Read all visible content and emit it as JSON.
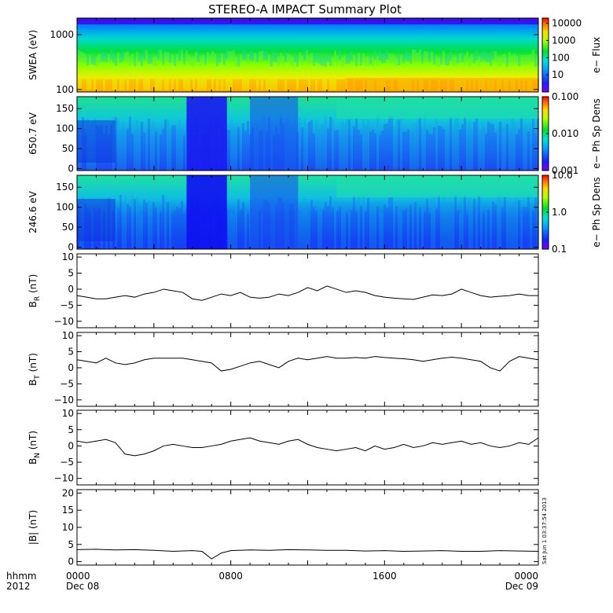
{
  "title": "STEREO-A IMPACT Summary Plot",
  "stamp": "Sat Jun 1 03:37:54 2013",
  "x_axis": {
    "corner_labels": [
      "hhmm",
      "2012"
    ],
    "ticks": [
      {
        "value": 0,
        "top": "0000",
        "bottom": "Dec 08"
      },
      {
        "value": 8,
        "top": "0800",
        "bottom": ""
      },
      {
        "value": 16,
        "top": "1600",
        "bottom": ""
      },
      {
        "value": 24,
        "top": "0000",
        "bottom": "Dec 09"
      }
    ],
    "range_hours": [
      0,
      24
    ]
  },
  "colors": {
    "line": "#000000",
    "frame": "#000000",
    "background": "#ffffff"
  },
  "chart_data": [
    {
      "type": "heatmap",
      "name": "swea",
      "ylabel": "SWEA (eV)",
      "yscale": "log",
      "ylim": [
        90,
        2000
      ],
      "yticks": [
        {
          "v": 100,
          "t": "100"
        },
        {
          "v": 1000,
          "t": "1000"
        }
      ],
      "colorbar": {
        "label": "e− Flux",
        "scale": "log",
        "range": [
          1,
          20000
        ],
        "ticks": [
          {
            "v": 10,
            "t": "10"
          },
          {
            "v": 100,
            "t": "100"
          },
          {
            "v": 1000,
            "t": "1000"
          },
          {
            "v": 10000,
            "t": "10000"
          }
        ]
      }
    },
    {
      "type": "heatmap",
      "name": "pad650",
      "ylabel": "650.7 eV",
      "yscale": "linear",
      "ylim": [
        -5,
        180
      ],
      "yticks": [
        {
          "v": 0,
          "t": "0"
        },
        {
          "v": 50,
          "t": "50"
        },
        {
          "v": 100,
          "t": "100"
        },
        {
          "v": 150,
          "t": "150"
        }
      ],
      "colorbar": {
        "label": "e− Ph Sp Dens",
        "scale": "log",
        "range": [
          0.001,
          0.1
        ],
        "ticks": [
          {
            "v": 0.001,
            "t": "0.001"
          },
          {
            "v": 0.01,
            "t": "0.010"
          },
          {
            "v": 0.1,
            "t": "0.100"
          }
        ]
      }
    },
    {
      "type": "heatmap",
      "name": "pad246",
      "ylabel": "246.6 eV",
      "yscale": "linear",
      "ylim": [
        -5,
        180
      ],
      "yticks": [
        {
          "v": 0,
          "t": "0"
        },
        {
          "v": 50,
          "t": "50"
        },
        {
          "v": 100,
          "t": "100"
        },
        {
          "v": 150,
          "t": "150"
        }
      ],
      "colorbar": {
        "label": "e− Ph Sp Dens",
        "scale": "log",
        "range": [
          0.1,
          10
        ],
        "ticks": [
          {
            "v": 0.1,
            "t": "0.1"
          },
          {
            "v": 1,
            "t": "1.0"
          },
          {
            "v": 10,
            "t": "10.0"
          }
        ]
      }
    },
    {
      "type": "line",
      "name": "br",
      "ylabel": "B",
      "ylabel_sub": "R",
      "ylabel_unit": " (nT)",
      "ylim": [
        -12,
        11
      ],
      "yticks": [
        {
          "v": -10,
          "t": "−10"
        },
        {
          "v": -5,
          "t": "−5"
        },
        {
          "v": 0,
          "t": "0"
        },
        {
          "v": 5,
          "t": "5"
        },
        {
          "v": 10,
          "t": "10"
        }
      ],
      "x": [
        0,
        0.5,
        1,
        1.5,
        2,
        2.5,
        3,
        3.5,
        4,
        4.5,
        5,
        5.5,
        6,
        6.5,
        7,
        7.5,
        8,
        8.5,
        9,
        9.5,
        10,
        10.5,
        11,
        11.5,
        12,
        12.5,
        13,
        13.5,
        14,
        14.5,
        15,
        15.5,
        16,
        16.5,
        17,
        17.5,
        18,
        18.5,
        19,
        19.5,
        20,
        20.5,
        21,
        21.5,
        22,
        22.5,
        23,
        23.5,
        24
      ],
      "y": [
        -2,
        -2.5,
        -3,
        -3,
        -2.5,
        -2,
        -2.5,
        -1.5,
        -1,
        0,
        -0.5,
        -1,
        -3,
        -3.5,
        -2.5,
        -1.5,
        -2,
        -1,
        -2.5,
        -2.8,
        -2.5,
        -1.5,
        -2,
        -1,
        0.5,
        -0.5,
        1,
        0,
        -1,
        -0.5,
        -1,
        -2,
        -2.5,
        -2.8,
        -3,
        -3.2,
        -2.5,
        -1.8,
        -2,
        -1.5,
        0,
        -1,
        -2,
        -2.5,
        -2.2,
        -2,
        -1.5,
        -2,
        -2
      ]
    },
    {
      "type": "line",
      "name": "bt",
      "ylabel": "B",
      "ylabel_sub": "T",
      "ylabel_unit": " (nT)",
      "ylim": [
        -12,
        11
      ],
      "yticks": [
        {
          "v": -10,
          "t": "−10"
        },
        {
          "v": -5,
          "t": "−5"
        },
        {
          "v": 0,
          "t": "0"
        },
        {
          "v": 5,
          "t": "5"
        },
        {
          "v": 10,
          "t": "10"
        }
      ],
      "x": [
        0,
        0.5,
        1,
        1.5,
        2,
        2.5,
        3,
        3.5,
        4,
        4.5,
        5,
        5.5,
        6,
        6.5,
        7,
        7.5,
        8,
        8.5,
        9,
        9.5,
        10,
        10.5,
        11,
        11.5,
        12,
        12.5,
        13,
        13.5,
        14,
        14.5,
        15,
        15.5,
        16,
        16.5,
        17,
        17.5,
        18,
        18.5,
        19,
        19.5,
        20,
        20.5,
        21,
        21.5,
        22,
        22.5,
        23,
        23.5,
        24
      ],
      "y": [
        2.5,
        2,
        1.5,
        3,
        1.5,
        1,
        1.5,
        2.5,
        3,
        3,
        3,
        3,
        2.5,
        2,
        1.5,
        -1,
        -0.5,
        0.5,
        1.5,
        2,
        1,
        0,
        2,
        3,
        2.5,
        3,
        3.5,
        3,
        3,
        3.2,
        3,
        3.5,
        3.2,
        3,
        2.8,
        2.5,
        2,
        2.5,
        3,
        3.3,
        3,
        2.5,
        2,
        0,
        -1,
        2,
        3.5,
        3,
        2.5
      ]
    },
    {
      "type": "line",
      "name": "bn",
      "ylabel": "B",
      "ylabel_sub": "N",
      "ylabel_unit": " (nT)",
      "ylim": [
        -12,
        11
      ],
      "yticks": [
        {
          "v": -10,
          "t": "−10"
        },
        {
          "v": -5,
          "t": "−5"
        },
        {
          "v": 0,
          "t": "0"
        },
        {
          "v": 5,
          "t": "5"
        },
        {
          "v": 10,
          "t": "10"
        }
      ],
      "x": [
        0,
        0.5,
        1,
        1.5,
        2,
        2.5,
        3,
        3.5,
        4,
        4.5,
        5,
        5.5,
        6,
        6.5,
        7,
        7.5,
        8,
        8.5,
        9,
        9.5,
        10,
        10.5,
        11,
        11.5,
        12,
        12.5,
        13,
        13.5,
        14,
        14.5,
        15,
        15.5,
        16,
        16.5,
        17,
        17.5,
        18,
        18.5,
        19,
        19.5,
        20,
        20.5,
        21,
        21.5,
        22,
        22.5,
        23,
        23.5,
        24
      ],
      "y": [
        1.5,
        1,
        1.5,
        2,
        1,
        -2.5,
        -3,
        -2.5,
        -1.5,
        0,
        0.5,
        0,
        -0.5,
        -0.5,
        0,
        0.5,
        1.5,
        2,
        2.5,
        1.5,
        1,
        0.5,
        1.5,
        2,
        0.5,
        -0.5,
        -1,
        -1.5,
        -1,
        -0.5,
        -1.5,
        0,
        -1,
        -0.5,
        0.5,
        -0.5,
        0,
        1,
        0.5,
        1,
        1.5,
        0.5,
        1,
        0,
        -0.5,
        0,
        1,
        0.5,
        2.5
      ]
    },
    {
      "type": "line",
      "name": "bmag",
      "ylabel": "|B| (nT)",
      "ylim": [
        -1,
        21
      ],
      "yticks": [
        {
          "v": 0,
          "t": "0"
        },
        {
          "v": 5,
          "t": "5"
        },
        {
          "v": 10,
          "t": "10"
        },
        {
          "v": 15,
          "t": "15"
        },
        {
          "v": 20,
          "t": "20"
        }
      ],
      "x": [
        0,
        1,
        2,
        3,
        4,
        5,
        6,
        6.5,
        7,
        7.5,
        8,
        9,
        10,
        11,
        12,
        13,
        14,
        15,
        16,
        17,
        18,
        19,
        20,
        21,
        22,
        23,
        24
      ],
      "y": [
        3.5,
        3.6,
        3.4,
        3.5,
        3.3,
        3,
        3.2,
        3,
        0.8,
        2.5,
        3.2,
        3.4,
        3.3,
        3.5,
        3.4,
        3.3,
        3.3,
        3.1,
        3.2,
        3,
        3.1,
        3.2,
        3,
        3,
        3.2,
        3.1,
        3
      ]
    }
  ]
}
